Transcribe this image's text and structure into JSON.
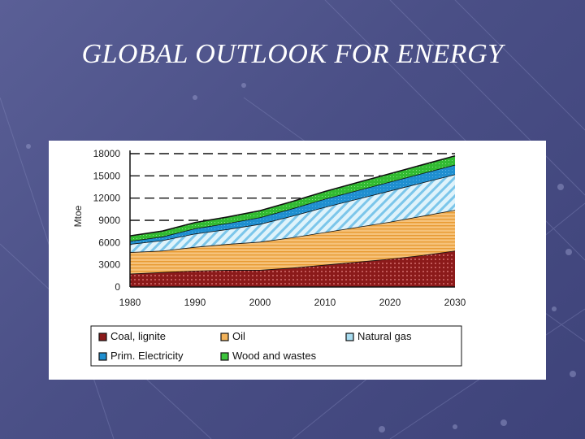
{
  "slide": {
    "title": "GLOBAL OUTLOOK FOR ENERGY"
  },
  "chart_data": {
    "type": "area",
    "stacked": true,
    "title": "",
    "xlabel": "",
    "ylabel": "Mtoe",
    "x": [
      1980,
      1985,
      1990,
      1995,
      2000,
      2005,
      2010,
      2015,
      2020,
      2025,
      2030
    ],
    "xticks": [
      "1980",
      "1990",
      "2000",
      "2010",
      "2020",
      "2030"
    ],
    "yticks": [
      "0",
      "3000",
      "6000",
      "9000",
      "12000",
      "15000",
      "18000"
    ],
    "xlim": [
      1980,
      2030
    ],
    "ylim": [
      0,
      18000
    ],
    "grid": "horizontal dashed",
    "legend_position": "bottom",
    "series": [
      {
        "name": "Coal, lignite",
        "color": "#8b1a1a",
        "values": [
          1800,
          2000,
          2200,
          2300,
          2300,
          2600,
          3000,
          3400,
          3800,
          4300,
          4900
        ]
      },
      {
        "name": "Oil",
        "color": "#f2b25a",
        "values": [
          2900,
          2900,
          3200,
          3500,
          3800,
          4100,
          4400,
          4700,
          5000,
          5300,
          5500
        ]
      },
      {
        "name": "Natural gas",
        "color": "#a8dcf0",
        "values": [
          1100,
          1400,
          1800,
          2000,
          2400,
          2900,
          3400,
          3800,
          4200,
          4500,
          4800
        ]
      },
      {
        "name": "Prim. Electricity",
        "color": "#1f8fd0",
        "values": [
          400,
          500,
          700,
          800,
          900,
          1000,
          1100,
          1150,
          1200,
          1250,
          1300
        ]
      },
      {
        "name": "Wood and wastes",
        "color": "#3cc43c",
        "values": [
          700,
          750,
          800,
          850,
          900,
          950,
          1000,
          1050,
          1100,
          1150,
          1200
        ]
      }
    ]
  }
}
